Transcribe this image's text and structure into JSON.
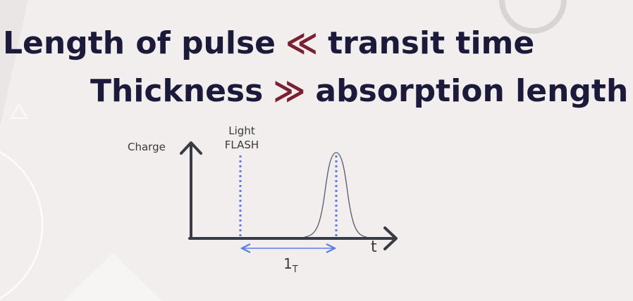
{
  "heading": {
    "line1": {
      "left": "Length of pulse",
      "symbol": "≪",
      "right": "transit time"
    },
    "line2": {
      "left": "Thickness",
      "symbol": "≫",
      "right": "absorption length"
    }
  },
  "diagram": {
    "y_axis_label": "Charge",
    "x_axis_label": "t",
    "flash_label_line1": "Light",
    "flash_label_line2": "FLASH",
    "transit_label": "1",
    "transit_label_sub": "T"
  },
  "colors": {
    "heading": "#1b1a3a",
    "symbol": "#7a2030",
    "axis": "#3a3a44",
    "dotted_line": "#5a7ee8",
    "arrow": "#5a7ee8"
  }
}
